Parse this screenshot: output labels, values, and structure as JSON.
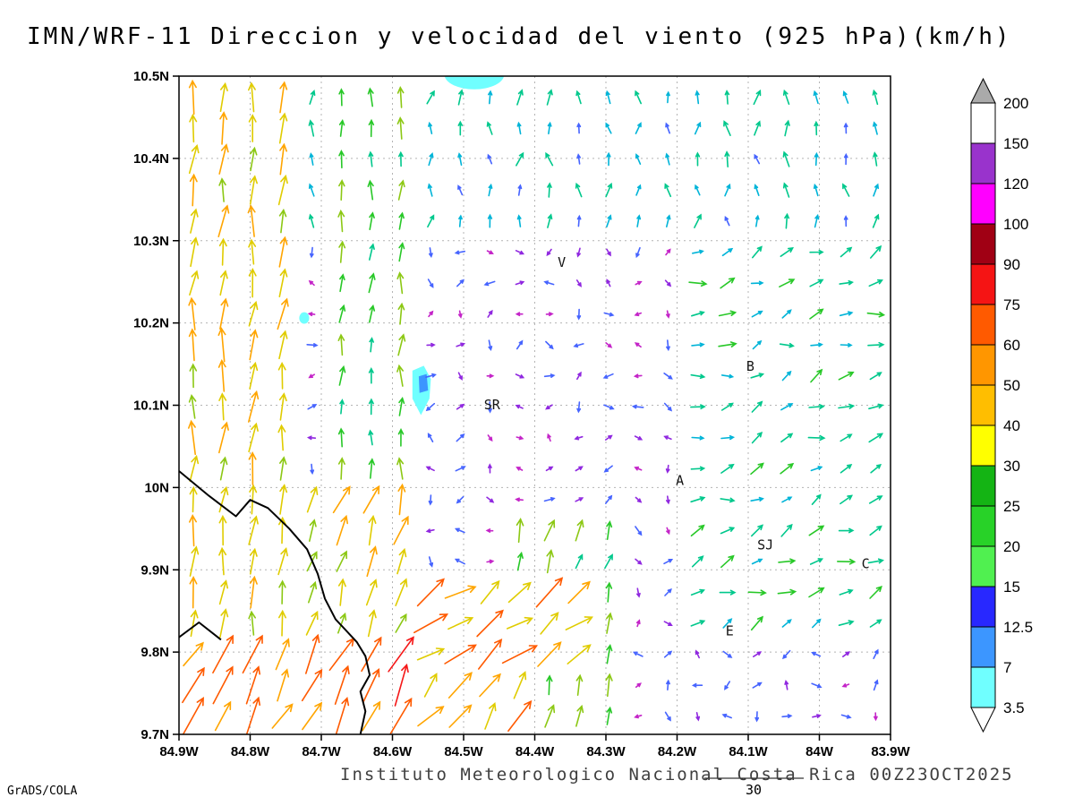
{
  "title": "IMN/WRF-11 Direccion y velocidad del viento (925 hPa)(km/h)",
  "footer": {
    "institute": "Instituto Meteorologico Nacional Costa Rica 00Z23OCT2025",
    "credit": "GrADS/COLA",
    "ref_vector_label": "30"
  },
  "axes": {
    "lon_range": [
      -84.9,
      -83.9
    ],
    "lat_range": [
      9.7,
      10.5
    ],
    "x_ticks": [
      {
        "v": -84.9,
        "label": "84.9W"
      },
      {
        "v": -84.8,
        "label": "84.8W"
      },
      {
        "v": -84.7,
        "label": "84.7W"
      },
      {
        "v": -84.6,
        "label": "84.6W"
      },
      {
        "v": -84.5,
        "label": "84.5W"
      },
      {
        "v": -84.4,
        "label": "84.4W"
      },
      {
        "v": -84.3,
        "label": "84.3W"
      },
      {
        "v": -84.2,
        "label": "84.2W"
      },
      {
        "v": -84.1,
        "label": "84.1W"
      },
      {
        "v": -84.0,
        "label": "84W"
      },
      {
        "v": -83.9,
        "label": "83.9W"
      }
    ],
    "y_ticks": [
      {
        "v": 9.7,
        "label": "9.7N"
      },
      {
        "v": 9.8,
        "label": "9.8N"
      },
      {
        "v": 9.9,
        "label": "9.9N"
      },
      {
        "v": 10.0,
        "label": "10N"
      },
      {
        "v": 10.1,
        "label": "10.1N"
      },
      {
        "v": 10.2,
        "label": "10.2N"
      },
      {
        "v": 10.3,
        "label": "10.3N"
      },
      {
        "v": 10.4,
        "label": "10.4N"
      },
      {
        "v": 10.5,
        "label": "10.5N"
      }
    ]
  },
  "colorbar": {
    "labels": [
      "200",
      "150",
      "120",
      "100",
      "90",
      "75",
      "60",
      "50",
      "40",
      "30",
      "25",
      "20",
      "15",
      "12.5",
      "7",
      "3.5"
    ],
    "segment_colors_top_to_bottom": [
      "#ffffff",
      "#9933cc",
      "#ff00ff",
      "#a00014",
      "#f51414",
      "#ff5a00",
      "#ff9600",
      "#ffbe00",
      "#ffff00",
      "#14b414",
      "#28d228",
      "#50f050",
      "#2828ff",
      "#3c96ff",
      "#70ffff"
    ],
    "above_color": "#aaaaaa",
    "below_color": "#ffffff"
  },
  "city_labels": [
    {
      "text": "V",
      "lon": -84.362,
      "lat": 10.268
    },
    {
      "text": "B",
      "lon": -84.097,
      "lat": 10.142
    },
    {
      "text": "SR",
      "lon": -84.46,
      "lat": 10.095
    },
    {
      "text": "A",
      "lon": -84.196,
      "lat": 10.003
    },
    {
      "text": "SJ",
      "lon": -84.076,
      "lat": 9.925
    },
    {
      "text": "C",
      "lon": -83.935,
      "lat": 9.902
    },
    {
      "text": "E",
      "lon": -84.126,
      "lat": 9.82
    }
  ],
  "chart_data": {
    "type": "vector_field",
    "variable": "wind direction and speed at 925 hPa (km/h)",
    "model": "IMN/WRF-11",
    "valid_time": "00Z23OCT2025",
    "speed_levels_kmh": [
      3.5,
      7,
      12.5,
      15,
      20,
      25,
      30,
      40,
      50,
      60,
      75,
      90,
      100,
      120,
      150,
      200
    ],
    "legend_position": "right",
    "grid": {
      "lon0": -84.88,
      "dlon": 0.0417,
      "nx": 24,
      "lat0": 9.722,
      "dlat": 0.0376,
      "ny": 21
    },
    "flow_zones": [
      {
        "name": "sw-coastal-jet",
        "lon": [
          -84.95,
          -84.58
        ],
        "lat": [
          9.6,
          9.8
        ],
        "speed": [
          45,
          70
        ],
        "dir": [
          15,
          45
        ]
      },
      {
        "name": "west-coastal-strip",
        "lon": [
          -84.95,
          -84.72
        ],
        "lat": [
          9.8,
          10.55
        ],
        "speed": [
          32,
          52
        ],
        "dir": [
          -8,
          18
        ]
      },
      {
        "name": "coast-transition",
        "lon": [
          -84.72,
          -84.58
        ],
        "lat": [
          9.8,
          10.02
        ],
        "speed": [
          28,
          48
        ],
        "dir": [
          5,
          35
        ]
      },
      {
        "name": "green-column",
        "lon": [
          -84.68,
          -84.57
        ],
        "lat": [
          10.02,
          10.55
        ],
        "speed": [
          16,
          30
        ],
        "dir": [
          -10,
          15
        ]
      },
      {
        "name": "bottom-center-jet",
        "lon": [
          -84.58,
          -84.33
        ],
        "lat": [
          9.76,
          9.9
        ],
        "speed": [
          38,
          62
        ],
        "dir": [
          30,
          70
        ]
      },
      {
        "name": "south-coast-band",
        "lon": [
          -84.58,
          -84.42
        ],
        "lat": [
          9.6,
          9.76
        ],
        "speed": [
          35,
          60
        ],
        "dir": [
          20,
          55
        ]
      },
      {
        "name": "south-center-column",
        "lon": [
          -84.44,
          -84.26
        ],
        "lat": [
          9.6,
          9.98
        ],
        "speed": [
          18,
          34
        ],
        "dir": [
          0,
          30
        ]
      },
      {
        "name": "north-band",
        "lon": [
          -84.72,
          -83.86
        ],
        "lat": [
          10.3,
          10.55
        ],
        "speed": [
          8,
          20
        ],
        "dir": [
          -30,
          30
        ]
      },
      {
        "name": "east-side",
        "lon": [
          -84.18,
          -83.86
        ],
        "lat": [
          9.82,
          10.3
        ],
        "speed": [
          10,
          23
        ],
        "dir": [
          40,
          100
        ]
      },
      {
        "name": "central-calm",
        "lon": [
          -85.0,
          -83.8
        ],
        "lat": [
          9.55,
          10.6
        ],
        "speed": [
          2,
          10
        ],
        "dir": [
          0,
          360
        ]
      }
    ],
    "arrow_palette": [
      {
        "max": 4,
        "color": "#c424c8"
      },
      {
        "max": 7,
        "color": "#9028e0"
      },
      {
        "max": 10,
        "color": "#4664ff"
      },
      {
        "max": 14,
        "color": "#00b4d8"
      },
      {
        "max": 20,
        "color": "#00c88c"
      },
      {
        "max": 26,
        "color": "#28c828"
      },
      {
        "max": 34,
        "color": "#8cc814"
      },
      {
        "max": 45,
        "color": "#e0cc00"
      },
      {
        "max": 55,
        "color": "#ffa500"
      },
      {
        "max": 68,
        "color": "#ff5a00"
      },
      {
        "max": 80,
        "color": "#f51818"
      },
      {
        "max": 999,
        "color": "#ff28a0"
      }
    ],
    "shaded_regions": [
      {
        "type": "ellipse",
        "lon": -84.485,
        "lat": 10.502,
        "rlon": 0.042,
        "rlat": 0.018,
        "color": "#70ffff"
      },
      {
        "type": "polygon",
        "color": "#70ffff",
        "points": [
          [
            -84.572,
            10.142
          ],
          [
            -84.556,
            10.148
          ],
          [
            -84.546,
            10.132
          ],
          [
            -84.548,
            10.108
          ],
          [
            -84.56,
            10.088
          ],
          [
            -84.572,
            10.108
          ]
        ]
      },
      {
        "type": "polygon",
        "color": "#3c96ff",
        "points": [
          [
            -84.563,
            10.135
          ],
          [
            -84.552,
            10.138
          ],
          [
            -84.55,
            10.118
          ],
          [
            -84.562,
            10.115
          ]
        ]
      },
      {
        "type": "ellipse",
        "lon": -84.724,
        "lat": 10.206,
        "rlon": 0.007,
        "rlat": 0.007,
        "color": "#70ffff"
      }
    ],
    "coastline": [
      [
        [
          -84.9,
          10.02
        ],
        [
          -84.858,
          9.99
        ],
        [
          -84.82,
          9.965
        ],
        [
          -84.8,
          9.985
        ],
        [
          -84.775,
          9.975
        ],
        [
          -84.745,
          9.95
        ],
        [
          -84.72,
          9.925
        ],
        [
          -84.705,
          9.895
        ],
        [
          -84.695,
          9.865
        ],
        [
          -84.68,
          9.84
        ],
        [
          -84.65,
          9.812
        ],
        [
          -84.638,
          9.795
        ],
        [
          -84.632,
          9.772
        ],
        [
          -84.645,
          9.752
        ],
        [
          -84.638,
          9.728
        ],
        [
          -84.645,
          9.7
        ]
      ],
      [
        [
          -84.9,
          9.818
        ],
        [
          -84.872,
          9.836
        ],
        [
          -84.841,
          9.815
        ]
      ]
    ]
  }
}
